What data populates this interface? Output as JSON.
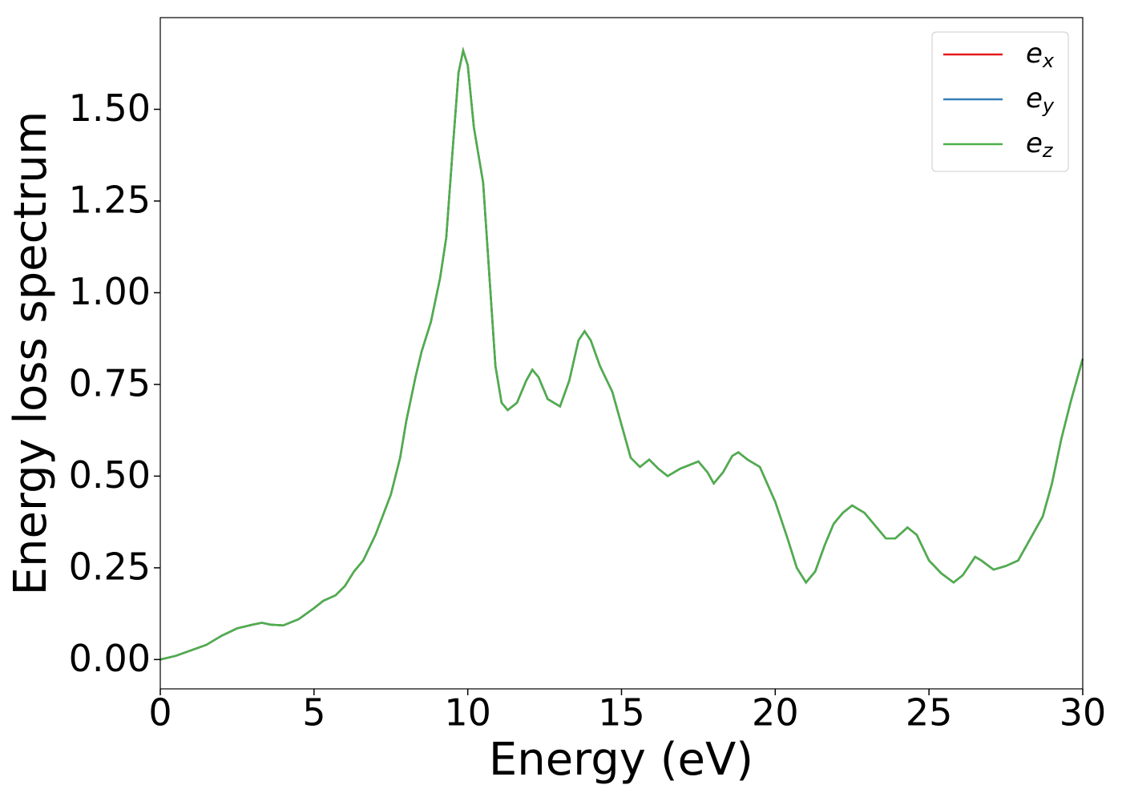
{
  "chart_data": {
    "type": "line",
    "xlabel": "Energy (eV)",
    "ylabel": "Energy loss spectrum",
    "x": [
      0,
      0.5,
      1,
      1.5,
      1.7,
      2,
      2.5,
      3,
      3.3,
      3.6,
      4,
      4.5,
      5,
      5.3,
      5.7,
      6,
      6.3,
      6.6,
      7,
      7.5,
      7.8,
      8,
      8.3,
      8.5,
      8.8,
      9.1,
      9.3,
      9.5,
      9.7,
      9.85,
      10,
      10.2,
      10.5,
      10.7,
      10.9,
      11.1,
      11.3,
      11.6,
      11.9,
      12.1,
      12.3,
      12.6,
      13,
      13.3,
      13.6,
      13.8,
      14,
      14.3,
      14.7,
      15,
      15.3,
      15.6,
      15.9,
      16.2,
      16.5,
      16.9,
      17.2,
      17.5,
      17.8,
      18,
      18.3,
      18.6,
      18.8,
      19.1,
      19.5,
      20,
      20.4,
      20.7,
      21,
      21.3,
      21.6,
      21.9,
      22.2,
      22.5,
      22.9,
      23.2,
      23.6,
      23.9,
      24.3,
      24.6,
      25,
      25.4,
      25.8,
      26.1,
      26.5,
      26.7,
      27.1,
      27.5,
      27.9,
      28.3,
      28.7,
      29,
      29.3,
      29.6,
      30
    ],
    "series": [
      {
        "name": "ex",
        "color": "#e41a1c",
        "values": [
          0,
          0.01,
          0.025,
          0.04,
          0.05,
          0.065,
          0.085,
          0.095,
          0.1,
          0.095,
          0.093,
          0.11,
          0.14,
          0.16,
          0.175,
          0.2,
          0.24,
          0.27,
          0.34,
          0.45,
          0.55,
          0.65,
          0.77,
          0.84,
          0.92,
          1.04,
          1.15,
          1.38,
          1.6,
          1.66,
          1.62,
          1.45,
          1.3,
          1.05,
          0.8,
          0.7,
          0.68,
          0.7,
          0.76,
          0.79,
          0.77,
          0.71,
          0.69,
          0.76,
          0.87,
          0.895,
          0.87,
          0.8,
          0.73,
          0.64,
          0.55,
          0.525,
          0.545,
          0.52,
          0.5,
          0.52,
          0.53,
          0.54,
          0.51,
          0.48,
          0.51,
          0.555,
          0.565,
          0.545,
          0.525,
          0.43,
          0.33,
          0.25,
          0.21,
          0.24,
          0.31,
          0.37,
          0.4,
          0.42,
          0.4,
          0.37,
          0.33,
          0.33,
          0.36,
          0.34,
          0.27,
          0.235,
          0.21,
          0.23,
          0.28,
          0.27,
          0.245,
          0.255,
          0.27,
          0.33,
          0.39,
          0.48,
          0.6,
          0.7,
          0.82
        ]
      },
      {
        "name": "ey",
        "color": "#377eb8",
        "values": [
          0,
          0.01,
          0.025,
          0.04,
          0.05,
          0.065,
          0.085,
          0.095,
          0.1,
          0.095,
          0.093,
          0.11,
          0.14,
          0.16,
          0.175,
          0.2,
          0.24,
          0.27,
          0.34,
          0.45,
          0.55,
          0.65,
          0.77,
          0.84,
          0.92,
          1.04,
          1.15,
          1.38,
          1.6,
          1.66,
          1.62,
          1.45,
          1.3,
          1.05,
          0.8,
          0.7,
          0.68,
          0.7,
          0.76,
          0.79,
          0.77,
          0.71,
          0.69,
          0.76,
          0.87,
          0.895,
          0.87,
          0.8,
          0.73,
          0.64,
          0.55,
          0.525,
          0.545,
          0.52,
          0.5,
          0.52,
          0.53,
          0.54,
          0.51,
          0.48,
          0.51,
          0.555,
          0.565,
          0.545,
          0.525,
          0.43,
          0.33,
          0.25,
          0.21,
          0.24,
          0.31,
          0.37,
          0.4,
          0.42,
          0.4,
          0.37,
          0.33,
          0.33,
          0.36,
          0.34,
          0.27,
          0.235,
          0.21,
          0.23,
          0.28,
          0.27,
          0.245,
          0.255,
          0.27,
          0.33,
          0.39,
          0.48,
          0.6,
          0.7,
          0.82
        ]
      },
      {
        "name": "ez",
        "color": "#4daf4a",
        "values": [
          0,
          0.01,
          0.025,
          0.04,
          0.05,
          0.065,
          0.085,
          0.095,
          0.1,
          0.095,
          0.093,
          0.11,
          0.14,
          0.16,
          0.175,
          0.2,
          0.24,
          0.27,
          0.34,
          0.45,
          0.55,
          0.65,
          0.77,
          0.84,
          0.92,
          1.04,
          1.15,
          1.38,
          1.6,
          1.66,
          1.62,
          1.45,
          1.3,
          1.05,
          0.8,
          0.7,
          0.68,
          0.7,
          0.76,
          0.79,
          0.77,
          0.71,
          0.69,
          0.76,
          0.87,
          0.895,
          0.87,
          0.8,
          0.73,
          0.64,
          0.55,
          0.525,
          0.545,
          0.52,
          0.5,
          0.52,
          0.53,
          0.54,
          0.51,
          0.48,
          0.51,
          0.555,
          0.565,
          0.545,
          0.525,
          0.43,
          0.33,
          0.25,
          0.21,
          0.24,
          0.31,
          0.37,
          0.4,
          0.42,
          0.4,
          0.37,
          0.33,
          0.33,
          0.36,
          0.34,
          0.27,
          0.235,
          0.21,
          0.23,
          0.28,
          0.27,
          0.245,
          0.255,
          0.27,
          0.33,
          0.39,
          0.48,
          0.6,
          0.7,
          0.82
        ]
      }
    ],
    "xlim": [
      0,
      30
    ],
    "xticks": [
      0,
      5,
      10,
      15,
      20,
      25,
      30
    ],
    "ylim": [
      -0.08,
      1.75
    ],
    "yticks": [
      {
        "value": 0,
        "label": "0.00"
      },
      0.25,
      {
        "value": 0.5,
        "label": "0.50"
      },
      0.75,
      {
        "value": 1,
        "label": "1.00"
      },
      1.25,
      {
        "value": 1.5,
        "label": "1.50"
      }
    ],
    "legend": "upper right",
    "grid": false
  }
}
